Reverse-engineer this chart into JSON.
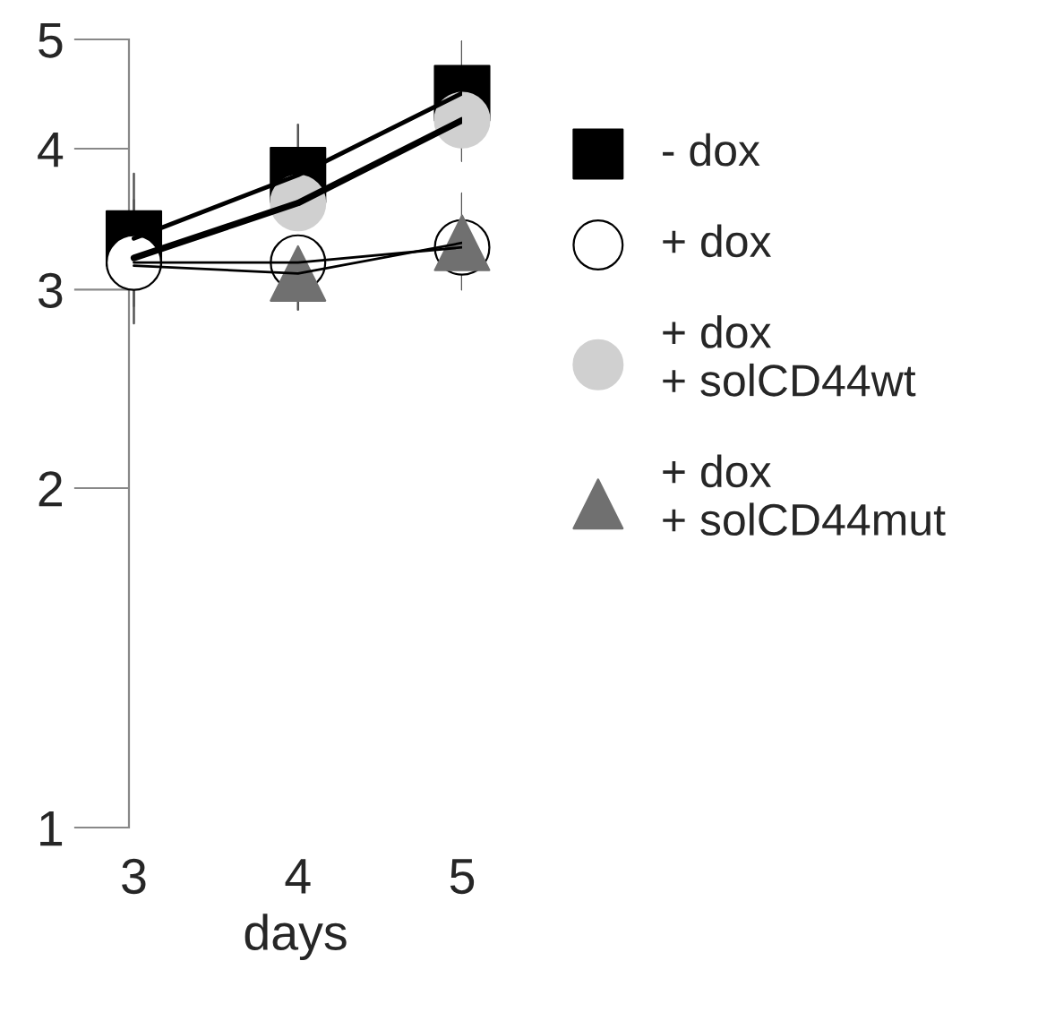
{
  "chart_data": {
    "type": "line",
    "xlabel": "days",
    "log": "y",
    "x": [
      3,
      4,
      5
    ],
    "xlim": [
      2.97,
      5
    ],
    "xticks": [
      3,
      4,
      5
    ],
    "ylim": [
      1,
      5
    ],
    "yticks": [
      1,
      2,
      3,
      4,
      5
    ],
    "grid": false,
    "legend": "right",
    "series": [
      {
        "name": "- dox",
        "color": "#000000",
        "marker": "square",
        "values": [
          3.33,
          3.79,
          4.48
        ],
        "errors": [
          [
            2.9,
            3.8
          ],
          [
            3.4,
            4.2
          ],
          [
            4.0,
            4.98
          ]
        ]
      },
      {
        "name": "+ dox",
        "color": "#ffffff",
        "marker": "circle",
        "values": [
          3.17,
          3.17,
          3.27
        ],
        "errors": [
          [
            2.8,
            3.6
          ],
          null,
          null
        ]
      },
      {
        "name": "+ dox\n+ solCD44wt",
        "type": "scatter",
        "color": "#d0d0d0",
        "marker": "circle",
        "values": [
          null,
          3.58,
          4.24
        ],
        "errors": [
          null,
          null,
          [
            3.9,
            4.24
          ]
        ]
      },
      {
        "name": "+ dox\n+ solCD44mut",
        "type": "scatter",
        "color": "#707070",
        "marker": "triangle",
        "values": [
          null,
          3.1,
          3.3
        ],
        "errors": [
          null,
          [
            2.88,
            3.3
          ],
          [
            3.0,
            3.65
          ]
        ]
      },
      {
        "type": "line",
        "color": "#000000",
        "marker": "none",
        "values": [
          3.2,
          3.58,
          4.24
        ]
      },
      {
        "type": "line",
        "color": "#000000",
        "marker": "none",
        "values": [
          3.15,
          3.1,
          3.3
        ]
      }
    ]
  }
}
